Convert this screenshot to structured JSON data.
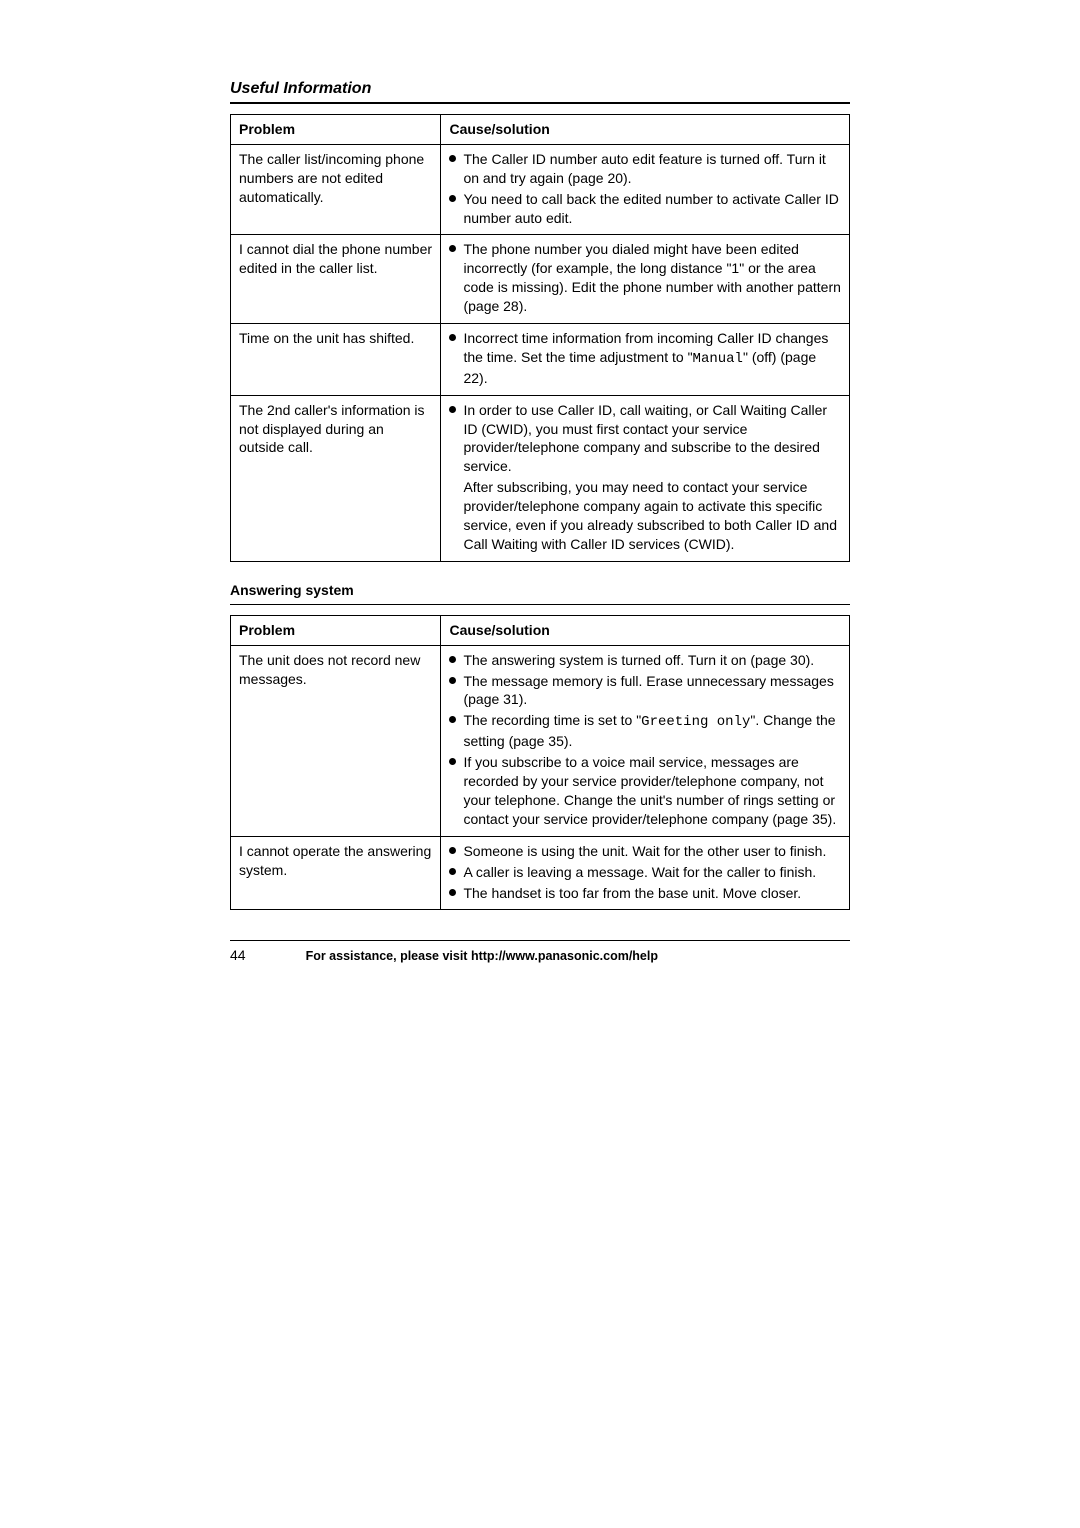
{
  "heading": "Useful Information",
  "complaints_table": {
    "headers": {
      "problem": "Problem",
      "solution": "Cause/solution"
    },
    "rows": [
      {
        "problem": "The caller list/incoming phone numbers are not edited automatically.",
        "bullets": [
          {
            "text": "The Caller ID number auto edit feature is turned off. Turn it on and try again (page 20)."
          },
          {
            "text": "You need to call back the edited number to activate Caller ID number auto edit."
          }
        ]
      },
      {
        "problem": "I cannot dial the phone number edited in the caller list.",
        "bullets": [
          {
            "text": "The phone number you dialed might have been edited incorrectly (for example, the long distance \"1\" or the area code is missing). Edit the phone number with another pattern (page 28)."
          }
        ]
      },
      {
        "problem": "Time on the unit has shifted.",
        "bullets": [
          {
            "prefix": "Incorrect time information from incoming Caller ID changes the time. Set the time adjustment to \"",
            "mono": "Manual",
            "suffix": "\" (off) (page 22)."
          }
        ]
      },
      {
        "problem": "The 2nd caller's information is not displayed during an outside call.",
        "bullets": [
          {
            "text": "In order to use Caller ID, call waiting, or Call Waiting Caller ID (CWID), you must first contact your service provider/telephone company and subscribe to the desired service."
          },
          {
            "text": "After subscribing, you may need to contact your service provider/telephone company again to activate this specific service, even if you already subscribed to both Caller ID and Call Waiting with Caller ID services (CWID).",
            "nobullet": true
          }
        ]
      }
    ]
  },
  "subsection_heading": "Answering system",
  "answering_table": {
    "headers": {
      "problem": "Problem",
      "solution": "Cause/solution"
    },
    "rows": [
      {
        "problem": "The unit does not record new messages.",
        "bullets": [
          {
            "text": "The answering system is turned off. Turn it on (page 30)."
          },
          {
            "text": "The message memory is full. Erase unnecessary messages (page 31)."
          },
          {
            "prefix": "The recording time is set to \"",
            "mono": "Greeting only",
            "suffix": "\". Change the setting (page 35)."
          },
          {
            "text": "If you subscribe to a voice mail service, messages are recorded by your service provider/telephone company, not your telephone. Change the unit's number of rings setting or contact your service provider/telephone company (page 35)."
          }
        ]
      },
      {
        "problem": "I cannot operate the answering system.",
        "bullets": [
          {
            "text": "Someone is using the unit. Wait for the other user to finish."
          },
          {
            "text": "A caller is leaving a message. Wait for the caller to finish."
          },
          {
            "text": "The handset is too far from the base unit. Move closer."
          }
        ]
      }
    ]
  },
  "footer": {
    "page_number": "44",
    "assistance": "For assistance, please visit http://www.panasonic.com/help"
  }
}
